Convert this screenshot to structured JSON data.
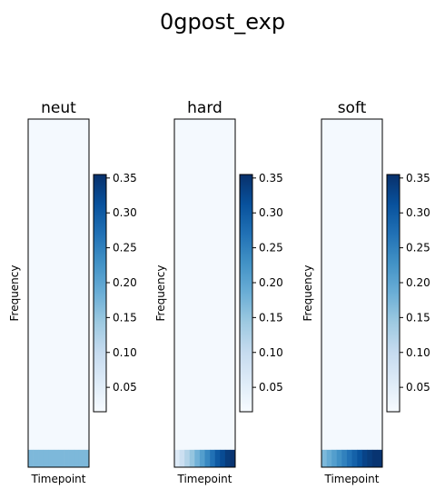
{
  "figure": {
    "title": "0gpost_exp"
  },
  "chart_data": [
    {
      "type": "heatmap",
      "title": "neut",
      "xlabel": "Timepoint",
      "ylabel": "Frequency",
      "colormap": "Blues",
      "colorbar": {
        "ticks": [
          0.05,
          0.1,
          0.15,
          0.2,
          0.25,
          0.3,
          0.35
        ],
        "tick_labels": [
          "0.05",
          "0.10",
          "0.15",
          "0.20",
          "0.25",
          "0.30",
          "0.35"
        ],
        "range": [
          0.015,
          0.355
        ]
      },
      "rows": 20,
      "columns": 12,
      "background_value": 0.02,
      "last_row_values": [
        0.17,
        0.17,
        0.17,
        0.17,
        0.17,
        0.17,
        0.17,
        0.17,
        0.17,
        0.17,
        0.17,
        0.17
      ]
    },
    {
      "type": "heatmap",
      "title": "hard",
      "xlabel": "Timepoint",
      "ylabel": "Frequency",
      "colormap": "Blues",
      "colorbar": {
        "ticks": [
          0.05,
          0.1,
          0.15,
          0.2,
          0.25,
          0.3,
          0.35
        ],
        "tick_labels": [
          "0.05",
          "0.10",
          "0.15",
          "0.20",
          "0.25",
          "0.30",
          "0.35"
        ],
        "range": [
          0.015,
          0.355
        ]
      },
      "rows": 20,
      "columns": 12,
      "background_value": 0.02,
      "last_row_values": [
        0.06,
        0.09,
        0.12,
        0.15,
        0.18,
        0.21,
        0.24,
        0.27,
        0.3,
        0.32,
        0.34,
        0.35
      ]
    },
    {
      "type": "heatmap",
      "title": "soft",
      "xlabel": "Timepoint",
      "ylabel": "Frequency",
      "colormap": "Blues",
      "colorbar": {
        "ticks": [
          0.05,
          0.1,
          0.15,
          0.2,
          0.25,
          0.3,
          0.35
        ],
        "tick_labels": [
          "0.05",
          "0.10",
          "0.15",
          "0.20",
          "0.25",
          "0.30",
          "0.35"
        ],
        "range": [
          0.015,
          0.355
        ]
      },
      "rows": 20,
      "columns": 12,
      "background_value": 0.02,
      "last_row_values": [
        0.17,
        0.19,
        0.21,
        0.23,
        0.25,
        0.27,
        0.29,
        0.31,
        0.33,
        0.34,
        0.35,
        0.35
      ]
    }
  ]
}
